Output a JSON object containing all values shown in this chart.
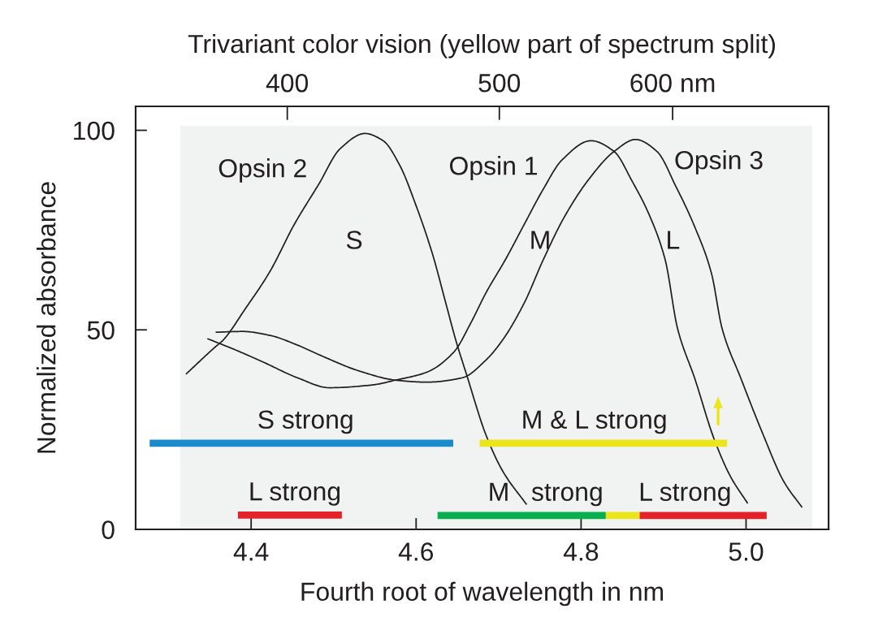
{
  "chart_data": {
    "type": "line",
    "title": "Trivariant color vision (yellow part of spectrum split)",
    "xlabel": "Fourth root of wavelength in nm",
    "ylabel": "Normalized absorbance",
    "xlim": [
      4.26,
      5.1
    ],
    "xticks": [
      4.4,
      4.6,
      4.8,
      {
        "value": 5,
        "label": "5.0"
      }
    ],
    "x2lim": [
      341,
      707
    ],
    "x2ticks": [
      400,
      500,
      {
        "value": 600,
        "label": "600 nm"
      }
    ],
    "log": "x2",
    "ylim": [
      0,
      106
    ],
    "yticks": [
      0,
      50,
      100
    ],
    "series": [
      {
        "color": "#231f20",
        "x": [
          4.321,
          4.357,
          4.365,
          4.393,
          4.423,
          4.452,
          4.482,
          4.508,
          4.538,
          4.56,
          4.58,
          4.6,
          4.62,
          4.636,
          4.648,
          4.661,
          4.685,
          4.705,
          4.734
        ],
        "values": [
          38.9,
          45.8,
          47.2,
          55.3,
          64.7,
          76.3,
          86.5,
          95.4,
          99.2,
          97.4,
          91.3,
          81.1,
          68.9,
          56.7,
          47.5,
          38.9,
          23.5,
          14.6,
          6.2
        ]
      },
      {
        "color": "#231f20",
        "x": [
          4.347,
          4.383,
          4.416,
          4.456,
          4.495,
          4.547,
          4.575,
          4.613,
          4.646,
          4.666,
          4.685,
          4.708,
          4.731,
          4.754,
          4.777,
          4.812,
          4.84,
          4.862,
          4.882,
          4.902,
          4.917,
          4.938,
          4.961,
          4.981,
          5.002
        ],
        "values": [
          47.8,
          44.8,
          41.8,
          38.0,
          35.5,
          36.2,
          37.4,
          39.4,
          44.5,
          51.6,
          59.4,
          67.5,
          76.4,
          85.2,
          92.6,
          97.4,
          94.7,
          87.2,
          79.1,
          67.5,
          50.3,
          37.7,
          22.8,
          13.3,
          6.5
        ]
      },
      {
        "color": "#231f20",
        "x": [
          4.357,
          4.39,
          4.423,
          4.456,
          4.482,
          4.531,
          4.575,
          4.613,
          4.656,
          4.685,
          4.705,
          4.731,
          4.754,
          4.78,
          4.81,
          4.84,
          4.866,
          4.892,
          4.915,
          4.938,
          4.958,
          4.971,
          4.994,
          5.02,
          5.046,
          5.068
        ],
        "values": [
          49.4,
          49.6,
          48.6,
          46.2,
          43.8,
          39.7,
          37.4,
          36.9,
          38.0,
          42.5,
          47.5,
          56.7,
          67.5,
          78.4,
          87.9,
          94.7,
          97.7,
          94.7,
          85.9,
          75.7,
          64.2,
          50.3,
          37.7,
          24.1,
          11.9,
          5.5
        ]
      },
      {
        "color": "#1b8bcb",
        "x": [
          4.277,
          4.645
        ],
        "values": [
          21.6,
          21.6
        ]
      },
      {
        "color": "#ebe51c",
        "x": [
          4.677,
          4.977
        ],
        "values": [
          21.6,
          21.6
        ]
      },
      {
        "color": "#e5222a",
        "x": [
          4.384,
          4.51
        ],
        "values": [
          3.6,
          3.6
        ]
      },
      {
        "color": "#0aaf4d",
        "x": [
          4.626,
          4.83
        ],
        "values": [
          3.5,
          3.5
        ]
      },
      {
        "color": "#ebe51c",
        "x": [
          4.83,
          4.871
        ],
        "values": [
          3.5,
          3.5
        ]
      },
      {
        "color": "#e5222a",
        "x": [
          4.871,
          5.025
        ],
        "values": [
          3.5,
          3.5
        ]
      }
    ],
    "annotations": [
      "Opsin 2",
      "S",
      "Opsin 1",
      "M",
      "Opsin 3",
      "L",
      {
        "text": "S strong",
        "x": 4.466,
        "y": 21.6
      },
      {
        "text": "M & L strong",
        "x": 4.816,
        "y": 21.6
      },
      {
        "text": "L strong",
        "x": 4.453,
        "y": 3.6
      },
      {
        "text": "M   strong",
        "x": 4.757,
        "y": 3.5
      },
      {
        "text": "L strong",
        "x": 4.926,
        "y": 3.5
      }
    ]
  }
}
